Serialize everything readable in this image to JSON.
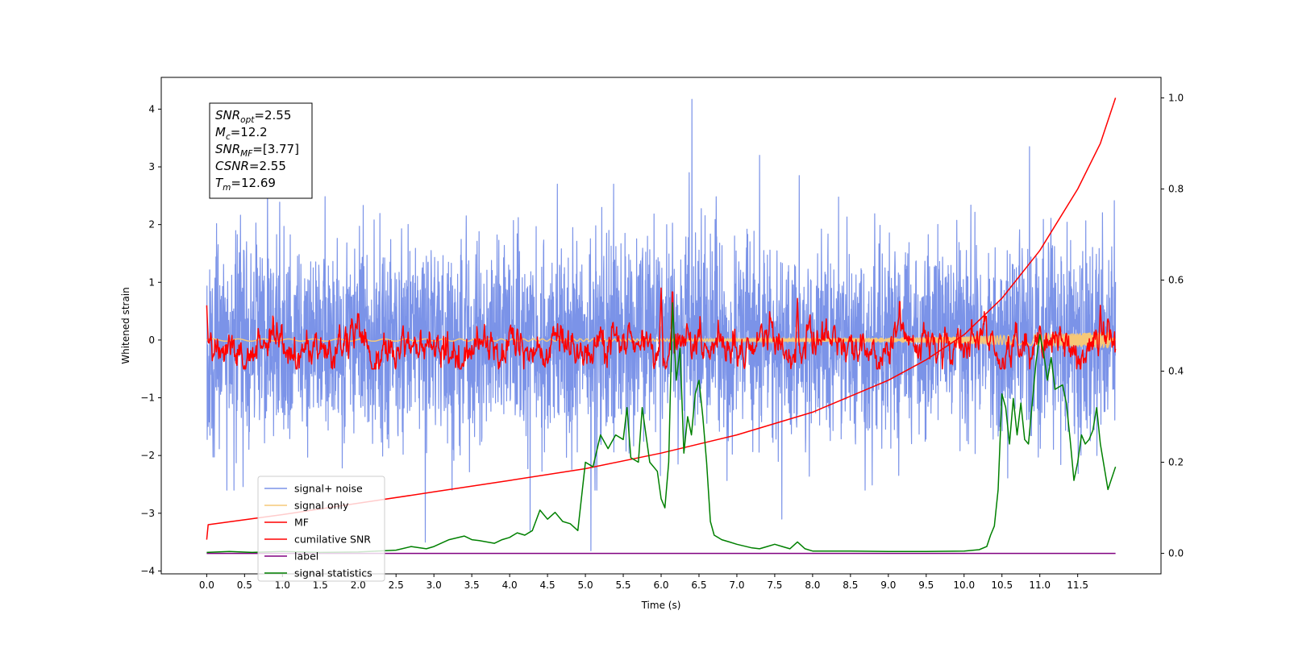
{
  "chart_data": {
    "type": "line",
    "title": "",
    "xlabel": "Time (s)",
    "ylabel": "Whitened strain",
    "y2label": "",
    "xlim": [
      -0.6,
      12.6
    ],
    "ylim": [
      -4.05,
      4.55
    ],
    "y2lim": [
      -0.045,
      1.045
    ],
    "xticks": [
      0.0,
      0.5,
      1.0,
      1.5,
      2.0,
      2.5,
      3.0,
      3.5,
      4.0,
      4.5,
      5.0,
      5.5,
      6.0,
      6.5,
      7.0,
      7.5,
      8.0,
      8.5,
      9.0,
      9.5,
      10.0,
      10.5,
      11.0,
      11.5
    ],
    "xtick_labels": [
      "0.0",
      "0.5",
      "1.0",
      "1.5",
      "2.0",
      "2.5",
      "3.0",
      "3.5",
      "4.0",
      "4.5",
      "5.0",
      "5.5",
      "6.0",
      "6.5",
      "7.0",
      "7.5",
      "8.0",
      "8.5",
      "9.0",
      "9.5",
      "10.0",
      "10.5",
      "11.0",
      "11.5"
    ],
    "yticks": [
      -4,
      -3,
      -2,
      -1,
      0,
      1,
      2,
      3,
      4
    ],
    "ytick_labels": [
      "−4",
      "−3",
      "−2",
      "−1",
      "0",
      "1",
      "2",
      "3",
      "4"
    ],
    "y2ticks": [
      0.0,
      0.2,
      0.4,
      0.6,
      0.8,
      1.0
    ],
    "y2tick_labels": [
      "0.0",
      "0.2",
      "0.4",
      "0.6",
      "0.8",
      "1.0"
    ],
    "grid": false,
    "legend_position": "lower-left",
    "annotation_lines": [
      {
        "symbol": "SNR",
        "sub": "opt",
        "value": "=2.55"
      },
      {
        "symbol": "M",
        "sub": "c",
        "value": "=12.2"
      },
      {
        "symbol": "SNR",
        "sub": "MF",
        "value": "=[3.77]"
      },
      {
        "symbol": "CSNR",
        "sub": "",
        "value": "=2.55"
      },
      {
        "symbol": "T",
        "sub": "m",
        "value": "=12.69"
      }
    ],
    "series": [
      {
        "name": "signal+ noise",
        "color": "#7b93e8",
        "axis": "left",
        "style": "noise",
        "x_range": [
          0.0,
          12.0
        ],
        "envelope": [
          -2.6,
          2.7
        ],
        "spikes_high": [
          4.17,
          3.35,
          3.2,
          2.9,
          2.85
        ],
        "spikes_low": [
          -3.65,
          -3.5,
          -3.3,
          -3.1
        ]
      },
      {
        "name": "signal only",
        "color": "#f6c878",
        "axis": "left",
        "style": "chirp",
        "x_range": [
          0.0,
          12.0
        ],
        "amplitude_start": 0.02,
        "amplitude_end": 0.15
      },
      {
        "name": "MF",
        "color": "#ff0000",
        "axis": "left",
        "style": "mf",
        "x_range": [
          0.0,
          12.0
        ],
        "baseline": -0.1,
        "range": [
          -0.5,
          1.0
        ]
      },
      {
        "name": "cumilative SNR",
        "color": "#ff0000",
        "axis": "right",
        "x": [
          0.0,
          0.02,
          1.0,
          2.0,
          3.0,
          4.0,
          5.0,
          6.0,
          7.0,
          8.0,
          9.0,
          9.5,
          10.0,
          10.5,
          11.0,
          11.5,
          11.8,
          12.0
        ],
        "y": [
          0.03,
          0.063,
          0.085,
          0.11,
          0.135,
          0.16,
          0.186,
          0.22,
          0.26,
          0.31,
          0.38,
          0.425,
          0.48,
          0.56,
          0.665,
          0.8,
          0.9,
          1.0
        ]
      },
      {
        "name": "label",
        "color": "#800080",
        "axis": "right",
        "x": [
          0.0,
          12.0
        ],
        "y": [
          0.0,
          0.0
        ]
      },
      {
        "name": "signal statistics",
        "color": "#008000",
        "axis": "right",
        "x": [
          0.0,
          0.3,
          0.6,
          1.0,
          1.5,
          2.0,
          2.5,
          2.7,
          2.9,
          3.0,
          3.2,
          3.4,
          3.5,
          3.6,
          3.8,
          3.9,
          4.0,
          4.1,
          4.2,
          4.3,
          4.4,
          4.5,
          4.6,
          4.7,
          4.8,
          4.9,
          5.0,
          5.1,
          5.2,
          5.3,
          5.4,
          5.5,
          5.55,
          5.6,
          5.7,
          5.75,
          5.85,
          5.95,
          6.0,
          6.05,
          6.1,
          6.15,
          6.2,
          6.25,
          6.3,
          6.35,
          6.4,
          6.45,
          6.5,
          6.55,
          6.6,
          6.65,
          6.7,
          6.8,
          6.9,
          7.0,
          7.2,
          7.3,
          7.4,
          7.5,
          7.6,
          7.7,
          7.8,
          7.9,
          8.0,
          8.5,
          9.0,
          9.5,
          10.0,
          10.2,
          10.3,
          10.35,
          10.4,
          10.45,
          10.5,
          10.55,
          10.6,
          10.65,
          10.7,
          10.75,
          10.8,
          10.85,
          10.9,
          10.95,
          11.0,
          11.05,
          11.1,
          11.15,
          11.2,
          11.3,
          11.35,
          11.4,
          11.45,
          11.5,
          11.55,
          11.6,
          11.65,
          11.7,
          11.75,
          11.8,
          11.9,
          12.0
        ],
        "y": [
          0.002,
          0.004,
          0.002,
          0.004,
          0.002,
          0.003,
          0.007,
          0.015,
          0.01,
          0.015,
          0.03,
          0.038,
          0.03,
          0.028,
          0.022,
          0.03,
          0.035,
          0.045,
          0.04,
          0.05,
          0.095,
          0.075,
          0.09,
          0.07,
          0.065,
          0.05,
          0.2,
          0.19,
          0.26,
          0.23,
          0.26,
          0.25,
          0.32,
          0.21,
          0.2,
          0.32,
          0.2,
          0.18,
          0.12,
          0.1,
          0.2,
          0.55,
          0.38,
          0.45,
          0.22,
          0.3,
          0.26,
          0.35,
          0.38,
          0.3,
          0.2,
          0.07,
          0.04,
          0.03,
          0.025,
          0.02,
          0.012,
          0.01,
          0.015,
          0.02,
          0.015,
          0.01,
          0.025,
          0.01,
          0.005,
          0.005,
          0.004,
          0.004,
          0.005,
          0.008,
          0.015,
          0.04,
          0.06,
          0.14,
          0.35,
          0.32,
          0.24,
          0.34,
          0.26,
          0.33,
          0.25,
          0.24,
          0.33,
          0.42,
          0.48,
          0.44,
          0.38,
          0.43,
          0.36,
          0.37,
          0.33,
          0.25,
          0.16,
          0.2,
          0.26,
          0.24,
          0.25,
          0.27,
          0.32,
          0.24,
          0.14,
          0.19
        ]
      }
    ]
  }
}
